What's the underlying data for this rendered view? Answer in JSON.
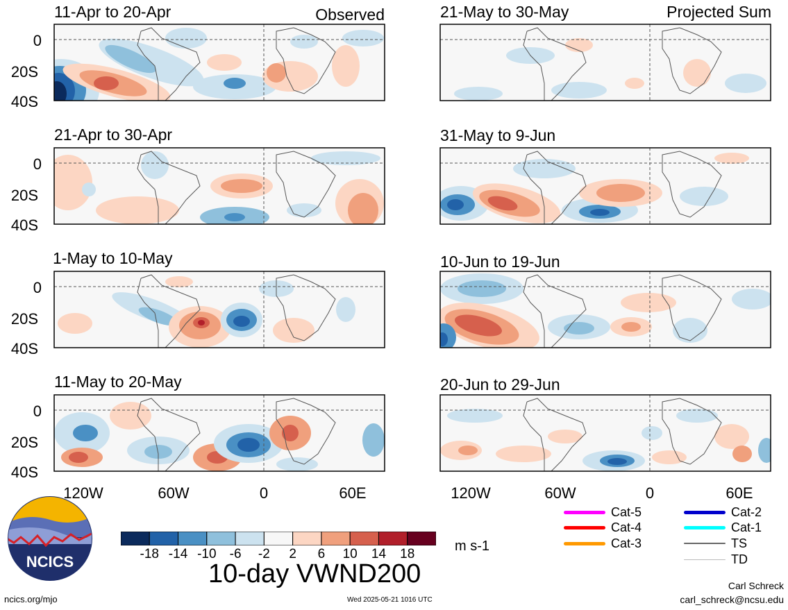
{
  "left_column": {
    "header_right": "Observed",
    "panels": [
      {
        "title": "11-Apr to 20-Apr"
      },
      {
        "title": "21-Apr to 30-Apr"
      },
      {
        "title": "1-May to 10-May"
      },
      {
        "title": "11-May to 20-May"
      }
    ]
  },
  "right_column": {
    "header_right": "Projected Sum",
    "panels": [
      {
        "title": "21-May to 30-May"
      },
      {
        "title": "31-May to 9-Jun"
      },
      {
        "title": "10-Jun to 19-Jun"
      },
      {
        "title": "20-Jun to 29-Jun"
      }
    ]
  },
  "lat_labels": [
    "0",
    "20S",
    "40S"
  ],
  "lon_labels": [
    "120W",
    "60W",
    "0",
    "60E"
  ],
  "colorbar": {
    "colors": [
      "#0b2a5c",
      "#2262a8",
      "#4a90c4",
      "#8fc0dc",
      "#cce2ef",
      "#f7f7f7",
      "#fcd6c3",
      "#f0a07d",
      "#d6604d",
      "#b11f2a",
      "#67001f"
    ],
    "ticks": [
      "-18",
      "-14",
      "-10",
      "-6",
      "-2",
      "2",
      "6",
      "10",
      "14",
      "18"
    ],
    "units": "m s-1",
    "title": "10-day VWND200"
  },
  "storm_legend": [
    {
      "label": "Cat-5",
      "color": "#ff00ff"
    },
    {
      "label": "Cat-2",
      "color": "#0000cc"
    },
    {
      "label": "Cat-4",
      "color": "#ff0000"
    },
    {
      "label": "Cat-1",
      "color": "#00ffff"
    },
    {
      "label": "Cat-3",
      "color": "#ff9900"
    },
    {
      "label": "TS",
      "color": "#666666"
    },
    {
      "label": "TD",
      "color": "#bbbbbb"
    }
  ],
  "logo": {
    "text": "NCICS"
  },
  "footer": {
    "site": "ncics.org/mjo",
    "timestamp": "Wed 2025-05-21 1016 UTC",
    "author": "Carl Schreck",
    "email": "carl_schreck@ncsu.edu"
  }
}
